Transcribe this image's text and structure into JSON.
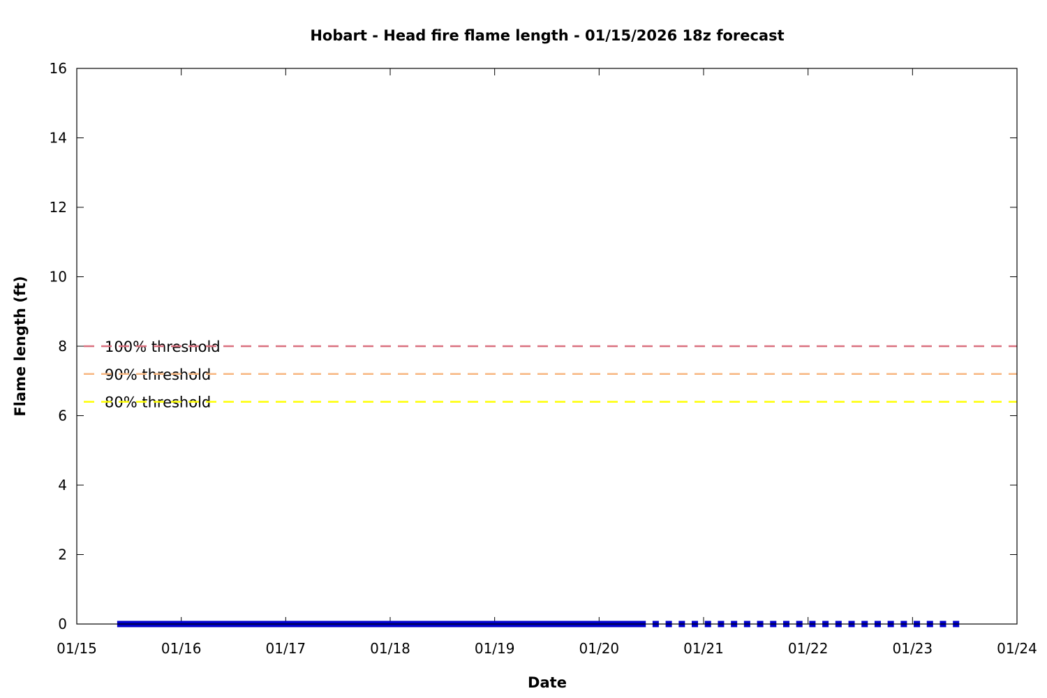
{
  "chart_data": {
    "type": "line",
    "title": "Hobart - Head fire flame length - 01/15/2026 18z forecast",
    "xlabel": "Date",
    "ylabel": "Flame length (ft)",
    "xlim": [
      "2026-01-15T00:00",
      "2026-01-24T00:00"
    ],
    "ylim": [
      0,
      16
    ],
    "x_ticks": [
      "01/15",
      "01/16",
      "01/17",
      "01/18",
      "01/19",
      "01/20",
      "01/21",
      "01/22",
      "01/23",
      "01/24"
    ],
    "y_ticks": [
      0,
      2,
      4,
      6,
      8,
      10,
      12,
      14,
      16
    ],
    "grid": false,
    "series": [
      {
        "style": "points",
        "color": "#0000cc",
        "x_start": "2026-01-15T10:00",
        "x_end": "2026-01-20T10:00",
        "x_step_hours": 1,
        "y_all": 0
      },
      {
        "style": "points",
        "color": "#0000cc",
        "x_start": "2026-01-20T13:00",
        "x_end": "2026-01-23T10:00",
        "x_step_hours": 3,
        "y_all": 0
      }
    ],
    "thresholds": [
      {
        "label": "100% threshold",
        "value": 8.0,
        "color": "#d9707f"
      },
      {
        "label": "90% threshold",
        "value": 7.2,
        "color": "#f7b680"
      },
      {
        "label": "80% threshold",
        "value": 6.4,
        "color": "#ffff00"
      }
    ]
  }
}
